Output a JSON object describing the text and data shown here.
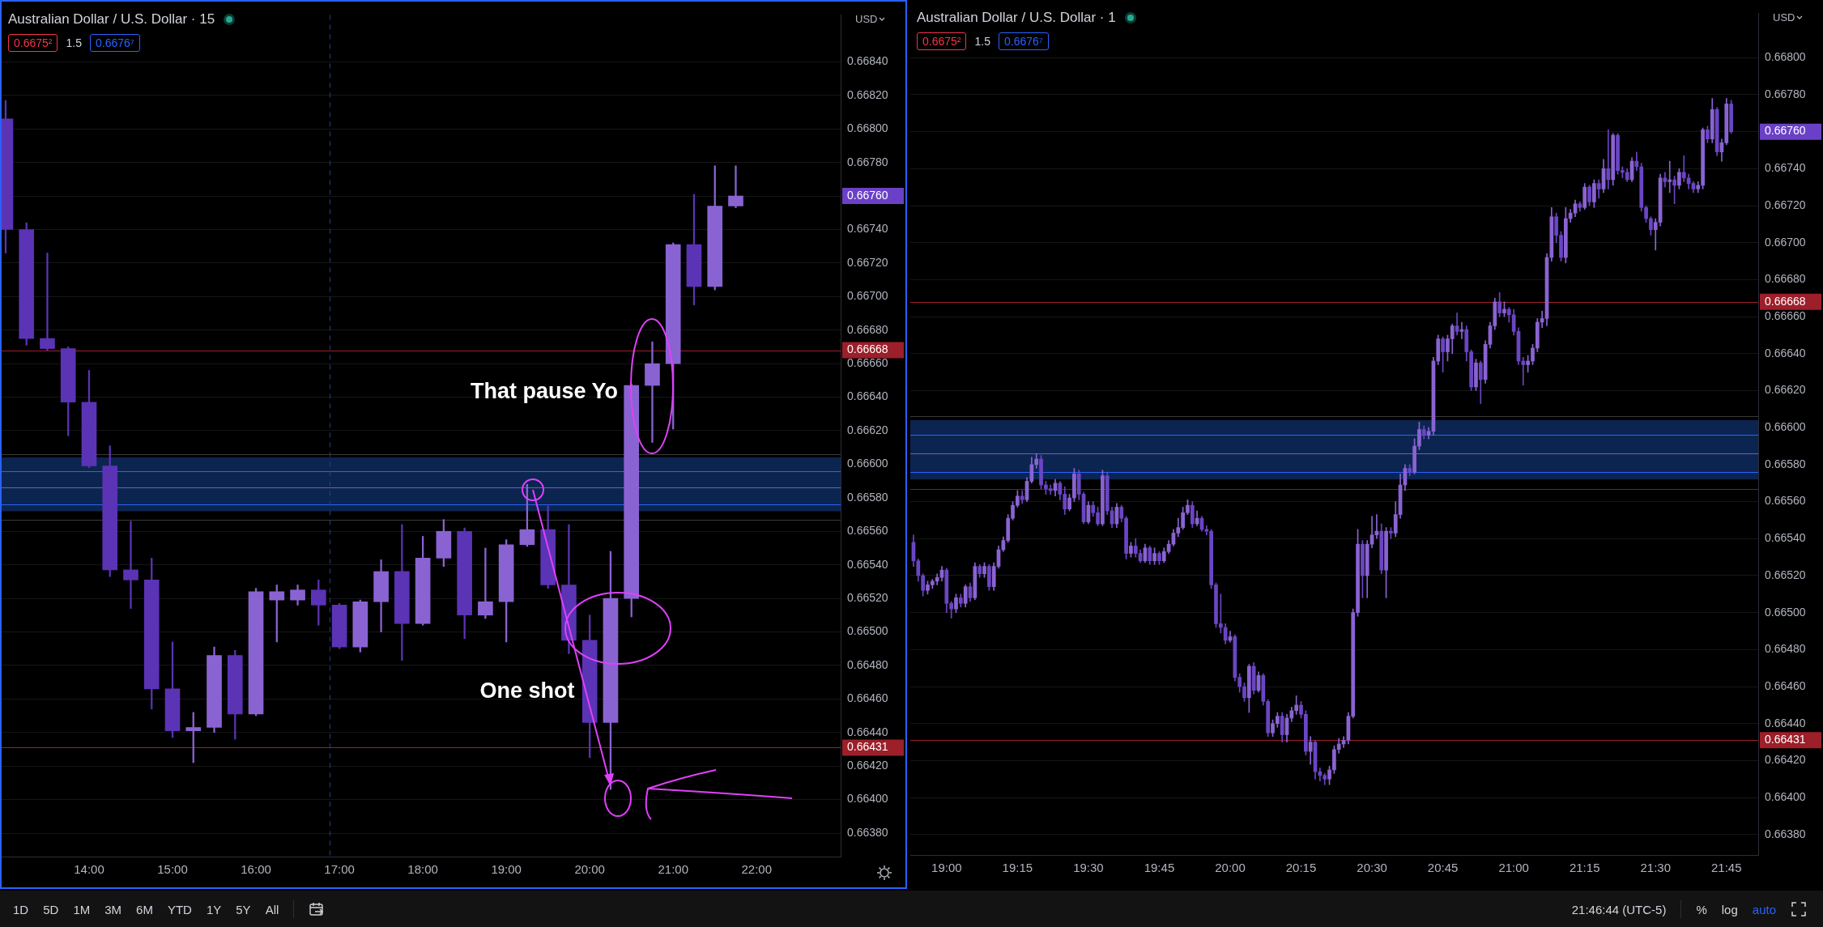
{
  "chart_data": [
    {
      "type": "candlestick",
      "title": "Australian Dollar / U.S. Dollar · 15",
      "ylabel": "USD",
      "grid": "y",
      "xlim": [
        12.952,
        23.007
      ],
      "xticks": [
        {
          "value": 14,
          "label": "14:00"
        },
        {
          "value": 15,
          "label": "15:00"
        },
        {
          "value": 16,
          "label": "16:00"
        },
        {
          "value": 17,
          "label": "17:00"
        },
        {
          "value": 18,
          "label": "18:00"
        },
        {
          "value": 19,
          "label": "19:00"
        },
        {
          "value": 20,
          "label": "20:00"
        },
        {
          "value": 21,
          "label": "21:00"
        },
        {
          "value": 22,
          "label": "22:00"
        }
      ],
      "ylim": [
        0.66366,
        0.66868
      ],
      "yticks": [
        {
          "value": 0.6638,
          "label": "0.66380"
        },
        {
          "value": 0.664,
          "label": "0.66400"
        },
        {
          "value": 0.6642,
          "label": "0.66420"
        },
        {
          "value": 0.6644,
          "label": "0.66440"
        },
        {
          "value": 0.6646,
          "label": "0.66460"
        },
        {
          "value": 0.6648,
          "label": "0.66480"
        },
        {
          "value": 0.665,
          "label": "0.66500"
        },
        {
          "value": 0.6652,
          "label": "0.66520"
        },
        {
          "value": 0.6654,
          "label": "0.66540"
        },
        {
          "value": 0.6656,
          "label": "0.66560"
        },
        {
          "value": 0.6658,
          "label": "0.66580"
        },
        {
          "value": 0.666,
          "label": "0.66600"
        },
        {
          "value": 0.6662,
          "label": "0.66620"
        },
        {
          "value": 0.6664,
          "label": "0.66640"
        },
        {
          "value": 0.6666,
          "label": "0.66660"
        },
        {
          "value": 0.6668,
          "label": "0.66680"
        },
        {
          "value": 0.667,
          "label": "0.66700"
        },
        {
          "value": 0.6672,
          "label": "0.66720"
        },
        {
          "value": 0.6674,
          "label": "0.66740"
        },
        {
          "value": 0.6676,
          "label": "0.66760"
        },
        {
          "value": 0.6678,
          "label": "0.66780"
        },
        {
          "value": 0.668,
          "label": "0.66800"
        },
        {
          "value": 0.6682,
          "label": "0.66820"
        },
        {
          "value": 0.6684,
          "label": "0.66840"
        }
      ],
      "series": [
        {
          "color": "#8a63d2",
          "x": [
            15.25,
            15.5,
            16,
            16.25,
            16.5,
            17.25,
            17.5,
            18,
            18.25,
            18.75,
            19,
            19.25,
            20.25,
            20.5,
            20.75,
            21,
            21.5,
            21.75
          ],
          "ohlc": [
            [
              0.66441,
              0.66452,
              0.66422,
              0.66443
            ],
            [
              0.66443,
              0.66491,
              0.6644,
              0.66486
            ],
            [
              0.66451,
              0.66526,
              0.6645,
              0.66524
            ],
            [
              0.66519,
              0.66528,
              0.66494,
              0.66524
            ],
            [
              0.66519,
              0.66528,
              0.66516,
              0.66525
            ],
            [
              0.66491,
              0.66519,
              0.66488,
              0.66518
            ],
            [
              0.66518,
              0.66543,
              0.665,
              0.66536
            ],
            [
              0.66505,
              0.66557,
              0.66504,
              0.66544
            ],
            [
              0.66544,
              0.66567,
              0.66539,
              0.6656
            ],
            [
              0.6651,
              0.6655,
              0.66508,
              0.66518
            ],
            [
              0.66518,
              0.66555,
              0.66494,
              0.66552
            ],
            [
              0.66552,
              0.66588,
              0.66551,
              0.66561
            ],
            [
              0.66446,
              0.66548,
              0.66406,
              0.6652
            ],
            [
              0.6652,
              0.66648,
              0.66509,
              0.66647
            ],
            [
              0.66647,
              0.66673,
              0.66613,
              0.6666
            ],
            [
              0.6666,
              0.66732,
              0.66621,
              0.66731
            ],
            [
              0.66706,
              0.66778,
              0.66704,
              0.66754
            ],
            [
              0.66754,
              0.66778,
              0.66753,
              0.6676
            ]
          ]
        },
        {
          "color": "#5b33b5",
          "x": [
            13,
            13.25,
            13.5,
            13.75,
            14,
            14.25,
            14.5,
            14.75,
            15,
            15.75,
            16.75,
            17,
            17.75,
            18.5,
            19.5,
            19.75,
            20,
            21.25
          ],
          "ohlc": [
            [
              0.66806,
              0.66817,
              0.66726,
              0.6674
            ],
            [
              0.6674,
              0.66744,
              0.66671,
              0.66675
            ],
            [
              0.66675,
              0.66726,
              0.66668,
              0.66669
            ],
            [
              0.66669,
              0.6667,
              0.66617,
              0.66637
            ],
            [
              0.66637,
              0.66656,
              0.66598,
              0.66599
            ],
            [
              0.66599,
              0.66611,
              0.66533,
              0.66537
            ],
            [
              0.66537,
              0.66566,
              0.66514,
              0.66531
            ],
            [
              0.66531,
              0.66544,
              0.66454,
              0.66466
            ],
            [
              0.66466,
              0.66494,
              0.66437,
              0.66441
            ],
            [
              0.66486,
              0.66489,
              0.66436,
              0.66451
            ],
            [
              0.66525,
              0.66531,
              0.66504,
              0.66516
            ],
            [
              0.66516,
              0.66517,
              0.6649,
              0.66491
            ],
            [
              0.66536,
              0.66564,
              0.66483,
              0.66505
            ],
            [
              0.6656,
              0.66562,
              0.66496,
              0.6651
            ],
            [
              0.66561,
              0.66575,
              0.66526,
              0.66528
            ],
            [
              0.66528,
              0.66564,
              0.66487,
              0.66495
            ],
            [
              0.66495,
              0.6651,
              0.66425,
              0.66446
            ],
            [
              0.66731,
              0.66761,
              0.66695,
              0.66706
            ]
          ]
        }
      ],
      "bands": [
        {
          "axis": "y",
          "from": 0.66572,
          "to": 0.66604,
          "color": "#0c2550"
        }
      ],
      "ref_lines": [
        {
          "axis": "y",
          "value": 0.66668,
          "label": "0.66668",
          "color": "#9c1f2a"
        },
        {
          "axis": "y",
          "value": 0.66431,
          "label": "0.66431",
          "color": "#9c1f2a"
        },
        {
          "axis": "y",
          "value": 0.66606,
          "color": "#3a3a3a"
        },
        {
          "axis": "y",
          "value": 0.66596,
          "color": "#2962ff"
        },
        {
          "axis": "y",
          "value": 0.66586,
          "color": "#7e57c2"
        },
        {
          "axis": "y",
          "value": 0.66576,
          "color": "#2962ff"
        },
        {
          "axis": "y",
          "value": 0.66567,
          "color": "#3a3a3a"
        },
        {
          "axis": "x",
          "value": 16.88,
          "color": "#23407a",
          "line_style": "dashed"
        }
      ],
      "annotations": [
        "0.6675²",
        "1.5",
        "0.6676⁷",
        "That pause Yo",
        "One shot",
        "1D",
        "5D",
        "1M",
        "3M",
        "6M",
        "YTD",
        "1Y",
        "5Y",
        "All"
      ]
    },
    {
      "type": "candlestick",
      "title": "Australian Dollar / U.S. Dollar · 1",
      "ylabel": "USD",
      "grid": "y",
      "xlim": [
        18.872,
        21.862
      ],
      "xticks": [
        {
          "value": 19,
          "label": "19:00"
        },
        {
          "value": 19.25,
          "label": "19:15"
        },
        {
          "value": 19.5,
          "label": "19:30"
        },
        {
          "value": 19.75,
          "label": "19:45"
        },
        {
          "value": 20,
          "label": "20:00"
        },
        {
          "value": 20.25,
          "label": "20:15"
        },
        {
          "value": 20.5,
          "label": "20:30"
        },
        {
          "value": 20.75,
          "label": "20:45"
        },
        {
          "value": 21,
          "label": "21:00"
        },
        {
          "value": 21.25,
          "label": "21:15"
        },
        {
          "value": 21.5,
          "label": "21:30"
        },
        {
          "value": 21.75,
          "label": "21:45"
        }
      ],
      "ylim": [
        0.66369,
        0.66824
      ],
      "yticks": [
        {
          "value": 0.6638,
          "label": "0.66380"
        },
        {
          "value": 0.664,
          "label": "0.66400"
        },
        {
          "value": 0.6642,
          "label": "0.66420"
        },
        {
          "value": 0.6644,
          "label": "0.66440"
        },
        {
          "value": 0.6646,
          "label": "0.66460"
        },
        {
          "value": 0.6648,
          "label": "0.66480"
        },
        {
          "value": 0.665,
          "label": "0.66500"
        },
        {
          "value": 0.6652,
          "label": "0.66520"
        },
        {
          "value": 0.6654,
          "label": "0.66540"
        },
        {
          "value": 0.6656,
          "label": "0.66560"
        },
        {
          "value": 0.6658,
          "label": "0.66580"
        },
        {
          "value": 0.666,
          "label": "0.66600"
        },
        {
          "value": 0.6662,
          "label": "0.66620"
        },
        {
          "value": 0.6664,
          "label": "0.66640"
        },
        {
          "value": 0.6666,
          "label": "0.66660"
        },
        {
          "value": 0.6668,
          "label": "0.66680"
        },
        {
          "value": 0.667,
          "label": "0.66700"
        },
        {
          "value": 0.6672,
          "label": "0.66720"
        },
        {
          "value": 0.6674,
          "label": "0.66740"
        },
        {
          "value": 0.6676,
          "label": "0.66760"
        },
        {
          "value": 0.6678,
          "label": "0.66780"
        },
        {
          "value": 0.668,
          "label": "0.66800"
        }
      ],
      "series": [
        {
          "color": "#8a63d2",
          "x": [
            18.9333,
            18.95,
            18.9667,
            18.9833,
            19.0333,
            19.0667,
            19.1,
            19.1333,
            19.1667,
            19.1833,
            19.2,
            19.2167,
            19.2333,
            19.25,
            19.2833,
            19.3,
            19.3167,
            19.3833,
            19.4333,
            19.45,
            19.5,
            19.55,
            19.6,
            19.65,
            19.7,
            19.7333,
            19.7667,
            19.7833,
            19.8,
            19.8167,
            19.8333,
            19.85,
            19.8833,
            20,
            20.0667,
            20.1,
            20.15,
            20.1667,
            20.2,
            20.2167,
            20.2333,
            20.2833,
            20.35,
            20.3667,
            20.3833,
            20.4,
            20.4167,
            20.4333,
            20.45,
            20.4833,
            20.5,
            20.5167,
            20.55,
            20.5833,
            20.6,
            20.6167,
            20.65,
            20.6667,
            20.7,
            20.7167,
            20.7333,
            20.7667,
            20.7833,
            20.8167,
            20.8667,
            20.9,
            20.9167,
            20.9333,
            20.9667,
            21.05,
            21.0667,
            21.0833,
            21.1,
            21.1167,
            21.1333,
            21.1833,
            21.2,
            21.2167,
            21.25,
            21.2833,
            21.3167,
            21.35,
            21.4167,
            21.5,
            21.5167,
            21.55,
            21.5833,
            21.65,
            21.6667,
            21.7,
            21.7333,
            21.75
          ],
          "ohlc": [
            [
              0.66512,
              0.66517,
              0.6651,
              0.66515
            ],
            [
              0.66515,
              0.66518,
              0.66513,
              0.66517
            ],
            [
              0.66517,
              0.66521,
              0.66515,
              0.66519
            ],
            [
              0.66519,
              0.66525,
              0.66517,
              0.66523
            ],
            [
              0.66502,
              0.6651,
              0.665,
              0.66508
            ],
            [
              0.66505,
              0.66515,
              0.66503,
              0.66514
            ],
            [
              0.66508,
              0.66527,
              0.66507,
              0.66525
            ],
            [
              0.66521,
              0.66527,
              0.66519,
              0.66525
            ],
            [
              0.66514,
              0.66527,
              0.66512,
              0.66525
            ],
            [
              0.66525,
              0.66536,
              0.66524,
              0.66534
            ],
            [
              0.66534,
              0.66541,
              0.66533,
              0.66539
            ],
            [
              0.66539,
              0.66553,
              0.66538,
              0.66551
            ],
            [
              0.66551,
              0.6656,
              0.6655,
              0.66558
            ],
            [
              0.66558,
              0.66566,
              0.66557,
              0.66563
            ],
            [
              0.66561,
              0.66573,
              0.6656,
              0.66571
            ],
            [
              0.66571,
              0.66584,
              0.6657,
              0.6658
            ],
            [
              0.6658,
              0.66586,
              0.66578,
              0.66583
            ],
            [
              0.66566,
              0.66572,
              0.66563,
              0.6657
            ],
            [
              0.66556,
              0.66564,
              0.66555,
              0.66562
            ],
            [
              0.66562,
              0.66578,
              0.6656,
              0.66575
            ],
            [
              0.66549,
              0.6656,
              0.66548,
              0.66558
            ],
            [
              0.66548,
              0.66577,
              0.66547,
              0.66574
            ],
            [
              0.66548,
              0.66559,
              0.66546,
              0.66557
            ],
            [
              0.66532,
              0.66538,
              0.6653,
              0.66536
            ],
            [
              0.66528,
              0.66537,
              0.66527,
              0.66535
            ],
            [
              0.66528,
              0.66535,
              0.66526,
              0.66532
            ],
            [
              0.66528,
              0.66535,
              0.66527,
              0.66533
            ],
            [
              0.66533,
              0.66539,
              0.66532,
              0.66537
            ],
            [
              0.66537,
              0.66545,
              0.66536,
              0.66543
            ],
            [
              0.66543,
              0.66551,
              0.66541,
              0.66546
            ],
            [
              0.66546,
              0.66557,
              0.66545,
              0.66554
            ],
            [
              0.66554,
              0.66561,
              0.66553,
              0.66558
            ],
            [
              0.66548,
              0.66555,
              0.66547,
              0.66551
            ],
            [
              0.66485,
              0.6649,
              0.66484,
              0.66487
            ],
            [
              0.66454,
              0.66472,
              0.66446,
              0.66471
            ],
            [
              0.66458,
              0.66468,
              0.66457,
              0.66466
            ],
            [
              0.66435,
              0.66442,
              0.66433,
              0.6644
            ],
            [
              0.6644,
              0.66446,
              0.66438,
              0.66444
            ],
            [
              0.66434,
              0.66445,
              0.6643,
              0.66443
            ],
            [
              0.66443,
              0.66449,
              0.66441,
              0.66447
            ],
            [
              0.66447,
              0.66455,
              0.66445,
              0.6645
            ],
            [
              0.66425,
              0.66433,
              0.66418,
              0.6643
            ],
            [
              0.6641,
              0.66417,
              0.66407,
              0.66415
            ],
            [
              0.66415,
              0.66428,
              0.66413,
              0.66426
            ],
            [
              0.66426,
              0.66432,
              0.66424,
              0.66429
            ],
            [
              0.66429,
              0.66433,
              0.66427,
              0.66431
            ],
            [
              0.66431,
              0.66446,
              0.66429,
              0.66444
            ],
            [
              0.66444,
              0.66502,
              0.66443,
              0.665
            ],
            [
              0.665,
              0.66545,
              0.66498,
              0.66537
            ],
            [
              0.6652,
              0.66539,
              0.66508,
              0.66537
            ],
            [
              0.66537,
              0.66552,
              0.66535,
              0.66542
            ],
            [
              0.66542,
              0.66553,
              0.6654,
              0.66544
            ],
            [
              0.66523,
              0.66546,
              0.66508,
              0.66544
            ],
            [
              0.66543,
              0.6656,
              0.66541,
              0.66553
            ],
            [
              0.66553,
              0.66575,
              0.66551,
              0.66569
            ],
            [
              0.66569,
              0.6658,
              0.66566,
              0.66578
            ],
            [
              0.66576,
              0.66594,
              0.66575,
              0.6659
            ],
            [
              0.6659,
              0.66603,
              0.66588,
              0.66599
            ],
            [
              0.66596,
              0.666,
              0.66594,
              0.66598
            ],
            [
              0.66598,
              0.66638,
              0.66596,
              0.66636
            ],
            [
              0.66636,
              0.6665,
              0.66634,
              0.66648
            ],
            [
              0.66641,
              0.6665,
              0.66636,
              0.66648
            ],
            [
              0.66648,
              0.66656,
              0.6664,
              0.66655
            ],
            [
              0.66652,
              0.66657,
              0.66648,
              0.66653
            ],
            [
              0.66622,
              0.66637,
              0.6662,
              0.66635
            ],
            [
              0.66626,
              0.66647,
              0.66624,
              0.66645
            ],
            [
              0.66645,
              0.66657,
              0.66643,
              0.66655
            ],
            [
              0.66655,
              0.6667,
              0.66653,
              0.66668
            ],
            [
              0.66662,
              0.66668,
              0.6666,
              0.66664
            ],
            [
              0.66634,
              0.66639,
              0.6663,
              0.66636
            ],
            [
              0.66636,
              0.66645,
              0.66634,
              0.66643
            ],
            [
              0.66643,
              0.66659,
              0.66641,
              0.66657
            ],
            [
              0.66657,
              0.66663,
              0.66654,
              0.66659
            ],
            [
              0.66659,
              0.66694,
              0.66655,
              0.66692
            ],
            [
              0.66692,
              0.66719,
              0.6669,
              0.66714
            ],
            [
              0.66692,
              0.66719,
              0.66689,
              0.66713
            ],
            [
              0.66713,
              0.66718,
              0.66711,
              0.66716
            ],
            [
              0.66716,
              0.66723,
              0.66714,
              0.66721
            ],
            [
              0.66719,
              0.66732,
              0.66718,
              0.6673
            ],
            [
              0.66722,
              0.66734,
              0.66719,
              0.66732
            ],
            [
              0.66729,
              0.66745,
              0.66727,
              0.6674
            ],
            [
              0.66734,
              0.66759,
              0.66731,
              0.66758
            ],
            [
              0.66734,
              0.66746,
              0.66733,
              0.66744
            ],
            [
              0.66707,
              0.66713,
              0.66696,
              0.66711
            ],
            [
              0.66711,
              0.66737,
              0.66709,
              0.66735
            ],
            [
              0.66733,
              0.66744,
              0.66727,
              0.66734
            ],
            [
              0.66731,
              0.6674,
              0.66729,
              0.66738
            ],
            [
              0.66729,
              0.66733,
              0.66727,
              0.66731
            ],
            [
              0.66731,
              0.66762,
              0.66729,
              0.66761
            ],
            [
              0.66756,
              0.66778,
              0.66754,
              0.66772
            ],
            [
              0.66749,
              0.66756,
              0.66744,
              0.66754
            ],
            [
              0.66754,
              0.66778,
              0.66753,
              0.66775
            ]
          ]
        },
        {
          "color": "#6a45c4",
          "x": [
            18.8833,
            18.9,
            18.9167,
            19,
            19.0167,
            19.05,
            19.0833,
            19.1167,
            19.15,
            19.2667,
            19.3333,
            19.35,
            19.3667,
            19.4,
            19.4167,
            19.4667,
            19.4833,
            19.5167,
            19.5333,
            19.5667,
            19.5833,
            19.6167,
            19.6333,
            19.6667,
            19.6833,
            19.7167,
            19.75,
            19.8667,
            19.9,
            19.9167,
            19.9333,
            19.95,
            19.9667,
            19.9833,
            20.0167,
            20.0333,
            20.05,
            20.0833,
            20.1167,
            20.1333,
            20.1833,
            20.25,
            20.2667,
            20.3,
            20.3167,
            20.3333,
            20.4667,
            20.5333,
            20.5667,
            20.6333,
            20.6833,
            20.75,
            20.8,
            20.8333,
            20.85,
            20.8833,
            20.95,
            20.9833,
            21,
            21.0167,
            21.0333,
            21.15,
            21.1667,
            21.2333,
            21.2667,
            21.3,
            21.3333,
            21.3667,
            21.3833,
            21.4,
            21.4333,
            21.45,
            21.4667,
            21.4833,
            21.5333,
            21.5667,
            21.6,
            21.6167,
            21.6333,
            21.6833,
            21.7167,
            21.7667
          ],
          "ohlc": [
            [
              0.66538,
              0.66542,
              0.66525,
              0.66528
            ],
            [
              0.66528,
              0.66529,
              0.66517,
              0.6652
            ],
            [
              0.6652,
              0.66521,
              0.66509,
              0.66512
            ],
            [
              0.66523,
              0.66524,
              0.665,
              0.66505
            ],
            [
              0.66505,
              0.66506,
              0.66497,
              0.66502
            ],
            [
              0.66508,
              0.6651,
              0.66503,
              0.66505
            ],
            [
              0.66514,
              0.66516,
              0.66506,
              0.66508
            ],
            [
              0.66525,
              0.66526,
              0.66519,
              0.66521
            ],
            [
              0.66525,
              0.66526,
              0.66512,
              0.66514
            ],
            [
              0.66563,
              0.66566,
              0.66559,
              0.66561
            ],
            [
              0.66583,
              0.66585,
              0.66567,
              0.66569
            ],
            [
              0.66569,
              0.66571,
              0.66564,
              0.66567
            ],
            [
              0.66567,
              0.66569,
              0.66564,
              0.66566
            ],
            [
              0.6657,
              0.66571,
              0.66561,
              0.66564
            ],
            [
              0.66564,
              0.66568,
              0.66553,
              0.66556
            ],
            [
              0.66575,
              0.66577,
              0.66561,
              0.66564
            ],
            [
              0.66564,
              0.66565,
              0.66548,
              0.66549
            ],
            [
              0.66558,
              0.6656,
              0.66552,
              0.66554
            ],
            [
              0.66554,
              0.66557,
              0.66547,
              0.66548
            ],
            [
              0.66574,
              0.66576,
              0.66553,
              0.66555
            ],
            [
              0.66555,
              0.66557,
              0.66546,
              0.66548
            ],
            [
              0.66557,
              0.66558,
              0.66549,
              0.66551
            ],
            [
              0.66551,
              0.66552,
              0.66529,
              0.66532
            ],
            [
              0.66536,
              0.6654,
              0.6653,
              0.66532
            ],
            [
              0.66532,
              0.66534,
              0.66527,
              0.66528
            ],
            [
              0.66535,
              0.66536,
              0.66526,
              0.66528
            ],
            [
              0.66532,
              0.66533,
              0.66526,
              0.66528
            ],
            [
              0.66558,
              0.6656,
              0.66546,
              0.66548
            ],
            [
              0.66551,
              0.66552,
              0.66544,
              0.66545
            ],
            [
              0.66545,
              0.66547,
              0.66542,
              0.66544
            ],
            [
              0.66544,
              0.66545,
              0.66513,
              0.66515
            ],
            [
              0.66515,
              0.66516,
              0.66492,
              0.66494
            ],
            [
              0.66494,
              0.6651,
              0.66489,
              0.66492
            ],
            [
              0.66492,
              0.66494,
              0.66483,
              0.66485
            ],
            [
              0.66487,
              0.66488,
              0.66463,
              0.66465
            ],
            [
              0.66465,
              0.66467,
              0.66457,
              0.6646
            ],
            [
              0.6646,
              0.66462,
              0.66452,
              0.66454
            ],
            [
              0.66471,
              0.66473,
              0.66456,
              0.66458
            ],
            [
              0.66466,
              0.66467,
              0.6645,
              0.66452
            ],
            [
              0.66452,
              0.66453,
              0.66433,
              0.66435
            ],
            [
              0.66444,
              0.66446,
              0.6643,
              0.66434
            ],
            [
              0.6645,
              0.66452,
              0.66443,
              0.66445
            ],
            [
              0.66445,
              0.66447,
              0.66423,
              0.66425
            ],
            [
              0.6643,
              0.66431,
              0.6641,
              0.66414
            ],
            [
              0.66414,
              0.66416,
              0.66409,
              0.66412
            ],
            [
              0.66412,
              0.66413,
              0.66407,
              0.6641
            ],
            [
              0.66537,
              0.66539,
              0.66508,
              0.6652
            ],
            [
              0.66544,
              0.66548,
              0.66521,
              0.66523
            ],
            [
              0.66544,
              0.66546,
              0.6654,
              0.66543
            ],
            [
              0.66578,
              0.6658,
              0.66574,
              0.66576
            ],
            [
              0.66599,
              0.66601,
              0.66594,
              0.66596
            ],
            [
              0.66648,
              0.66649,
              0.6663,
              0.66641
            ],
            [
              0.66655,
              0.66662,
              0.6665,
              0.66652
            ],
            [
              0.66653,
              0.66655,
              0.66636,
              0.66641
            ],
            [
              0.66641,
              0.66642,
              0.6662,
              0.66622
            ],
            [
              0.66635,
              0.66636,
              0.66613,
              0.66626
            ],
            [
              0.66668,
              0.66673,
              0.6666,
              0.66662
            ],
            [
              0.66664,
              0.66665,
              0.66657,
              0.66661
            ],
            [
              0.66661,
              0.66664,
              0.6665,
              0.66652
            ],
            [
              0.66652,
              0.66654,
              0.66634,
              0.66636
            ],
            [
              0.66636,
              0.66638,
              0.66623,
              0.66634
            ],
            [
              0.66714,
              0.66716,
              0.667,
              0.66704
            ],
            [
              0.66704,
              0.66706,
              0.6669,
              0.66692
            ],
            [
              0.66721,
              0.66722,
              0.66717,
              0.66719
            ],
            [
              0.6673,
              0.66731,
              0.6672,
              0.66722
            ],
            [
              0.66732,
              0.66734,
              0.66724,
              0.66729
            ],
            [
              0.6674,
              0.66761,
              0.66729,
              0.66734
            ],
            [
              0.66758,
              0.66759,
              0.66737,
              0.66739
            ],
            [
              0.66739,
              0.66741,
              0.66735,
              0.66738
            ],
            [
              0.66738,
              0.6674,
              0.66733,
              0.66734
            ],
            [
              0.66744,
              0.66749,
              0.66739,
              0.66741
            ],
            [
              0.66741,
              0.66743,
              0.66717,
              0.66719
            ],
            [
              0.66719,
              0.6672,
              0.66711,
              0.66713
            ],
            [
              0.66713,
              0.66714,
              0.66704,
              0.66707
            ],
            [
              0.66735,
              0.66738,
              0.6673,
              0.66733
            ],
            [
              0.66734,
              0.66736,
              0.66721,
              0.66731
            ],
            [
              0.66738,
              0.66747,
              0.66733,
              0.66735
            ],
            [
              0.66735,
              0.66737,
              0.66729,
              0.66732
            ],
            [
              0.66732,
              0.66733,
              0.66727,
              0.66729
            ],
            [
              0.66761,
              0.66763,
              0.66754,
              0.66756
            ],
            [
              0.66772,
              0.66773,
              0.66747,
              0.66749
            ],
            [
              0.66775,
              0.66777,
              0.66759,
              0.6676
            ]
          ]
        }
      ],
      "bands": [
        {
          "axis": "y",
          "from": 0.66572,
          "to": 0.66604,
          "color": "#0c2550"
        }
      ],
      "ref_lines": [
        {
          "axis": "y",
          "value": 0.66668,
          "label": "0.66668",
          "color": "#9c1f2a"
        },
        {
          "axis": "y",
          "value": 0.66431,
          "label": "0.66431",
          "color": "#9c1f2a"
        },
        {
          "axis": "y",
          "value": 0.66606,
          "color": "#3a3a3a"
        },
        {
          "axis": "y",
          "value": 0.66596,
          "color": "#2962ff"
        },
        {
          "axis": "y",
          "value": 0.66586,
          "color": "#7e57c2"
        },
        {
          "axis": "y",
          "value": 0.66576,
          "color": "#2962ff"
        },
        {
          "axis": "y",
          "value": 0.66567,
          "color": "#3a3a3a"
        }
      ],
      "annotations": [
        "0.6675²",
        "1.5",
        "0.6676⁷",
        "21:46:44 (UTC-5)",
        "%",
        "log",
        "auto"
      ]
    }
  ]
}
